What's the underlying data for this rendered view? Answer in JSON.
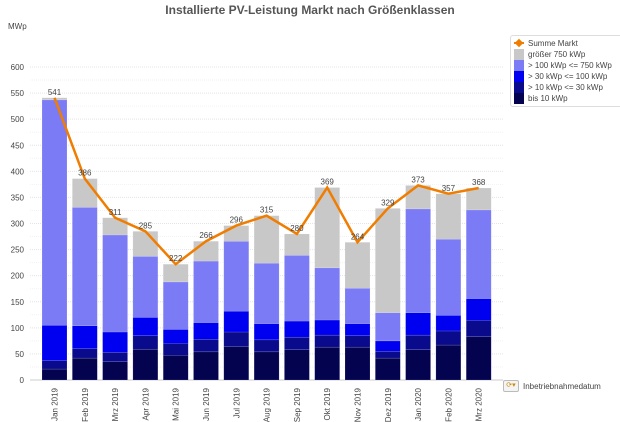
{
  "chart_data": {
    "type": "bar",
    "stacked": true,
    "title": "Installierte PV-Leistung Markt nach Größenklassen",
    "ylabel": "MWp",
    "xlabel": "",
    "dimension_label": "Inbetriebnahmedatum",
    "ylim": [
      0,
      600
    ],
    "yticks": [
      0,
      50,
      100,
      150,
      200,
      250,
      300,
      350,
      400,
      450,
      500,
      550,
      600
    ],
    "grid": true,
    "legend_position": "right",
    "categories": [
      "Jan 2019",
      "Feb 2019",
      "Mrz 2019",
      "Apr 2019",
      "Mai 2019",
      "Jun 2019",
      "Jul 2019",
      "Aug 2019",
      "Sep 2019",
      "Okt 2019",
      "Nov 2019",
      "Dez 2019",
      "Jan 2020",
      "Feb 2020",
      "Mrz 2020"
    ],
    "series": [
      {
        "name": "bis 10 kWp",
        "color": "#03034f",
        "values": [
          21,
          42,
          35,
          59,
          47,
          54,
          64,
          54,
          58,
          63,
          63,
          42,
          58,
          67,
          83
        ]
      },
      {
        "name": "> 10 kWp <= 30 kWp",
        "color": "#0a0a8c",
        "values": [
          16,
          18,
          18,
          26,
          23,
          24,
          28,
          23,
          24,
          23,
          22,
          13,
          28,
          27,
          31
        ]
      },
      {
        "name": "> 30 kWp <= 100 kWp",
        "color": "#0000f0",
        "values": [
          68,
          44,
          39,
          35,
          27,
          32,
          40,
          31,
          31,
          29,
          23,
          20,
          43,
          30,
          42
        ]
      },
      {
        "name": "> 100 kWp <= 750 kWp",
        "color": "#7b7bf5",
        "values": [
          432,
          227,
          186,
          117,
          91,
          118,
          134,
          116,
          126,
          100,
          68,
          54,
          199,
          146,
          170
        ]
      },
      {
        "name": "größer 750 kWp",
        "color": "#c8c8c8",
        "values": [
          4,
          55,
          33,
          48,
          34,
          38,
          30,
          91,
          41,
          154,
          88,
          200,
          45,
          87,
          42
        ]
      }
    ],
    "line": {
      "name": "Summe Markt",
      "color": "#f07d00",
      "values": [
        541,
        386,
        311,
        285,
        222,
        266,
        296,
        315,
        280,
        369,
        264,
        329,
        373,
        357,
        368
      ]
    }
  }
}
